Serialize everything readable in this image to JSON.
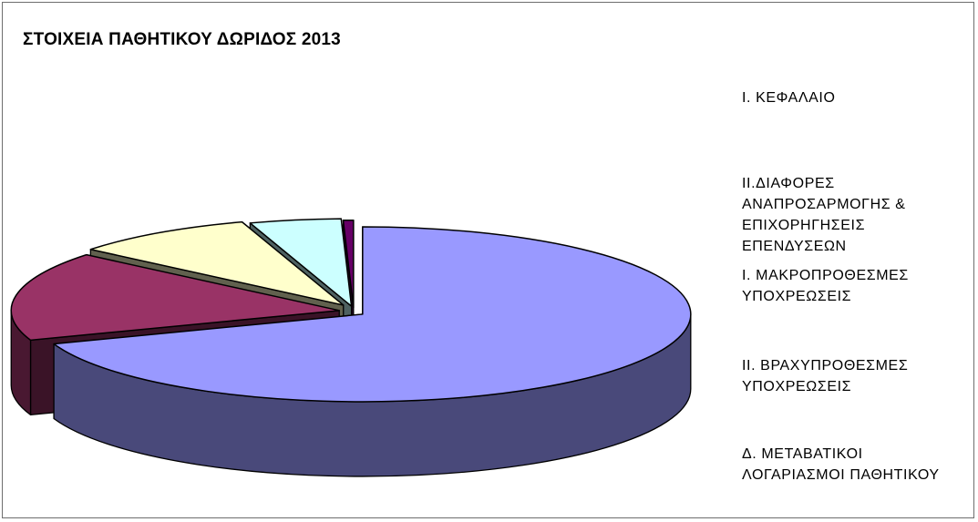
{
  "chart_data": {
    "type": "pie",
    "title": "ΣΤΟΙΧΕΙΑ ΠΑΘΗΤΙΚΟΥ ΔΩΡΙΔΟΣ 2013",
    "is_3d": true,
    "exploded": true,
    "legend_position": "right",
    "legend_markers_shown": false,
    "slices": [
      {
        "label": "Ι. ΚΕΦΑΛΑΙΟ",
        "value": 69.5,
        "color": "#9999FF"
      },
      {
        "label": "ΙΙ.ΔΙΑΦΟΡΕΣ ΑΝΑΠΡΟΣΑΡΜΟΓΗΣ & ΕΠΙΧΟΡΗΓΗΣΕΙΣ ΕΠΕΝΔΥΣΕΩΝ",
        "value": 16.5,
        "color": "#993366"
      },
      {
        "label": "Ι. ΜΑΚΡΟΠΡΟΘΕΣΜΕΣ ΥΠΟΧΡΕΩΣΕΙΣ",
        "value": 9.0,
        "color": "#FFFFCC"
      },
      {
        "label": "ΙΙ. ΒΡΑΧΥΠΡΟΘΕΣΜΕΣ ΥΠΟΧΡΕΩΣΕΙΣ",
        "value": 4.5,
        "color": "#CCFFFF"
      },
      {
        "label": "Δ. ΜΕΤΑΒΑΤΙΚΟΙ ΛΟΓΑΡΙΑΣΜΟΙ ΠΑΘΗΤΙΚΟΥ",
        "value": 0.5,
        "color": "#660066"
      }
    ]
  },
  "legend": {
    "items": [
      "Ι. ΚΕΦΑΛΑΙΟ",
      "ΙΙ.ΔΙΑΦΟΡΕΣ\nΑΝΑΠΡΟΣΑΡΜΟΓΗΣ &\nΕΠΙΧΟΡΗΓΗΣΕΙΣ\nΕΠΕΝΔΥΣΕΩΝ",
      "Ι. ΜΑΚΡΟΠΡΟΘΕΣΜΕΣ\nΥΠΟΧΡΕΩΣΕΙΣ",
      "ΙΙ. ΒΡΑΧΥΠΡΟΘΕΣΜΕΣ\nΥΠΟΧΡΕΩΣΕΙΣ",
      "Δ. ΜΕΤΑΒΑΤΙΚΟΙ\nΛΟΓΑΡΙΑΣΜΟΙ ΠΑΘΗΤΙΚΟΥ"
    ]
  }
}
